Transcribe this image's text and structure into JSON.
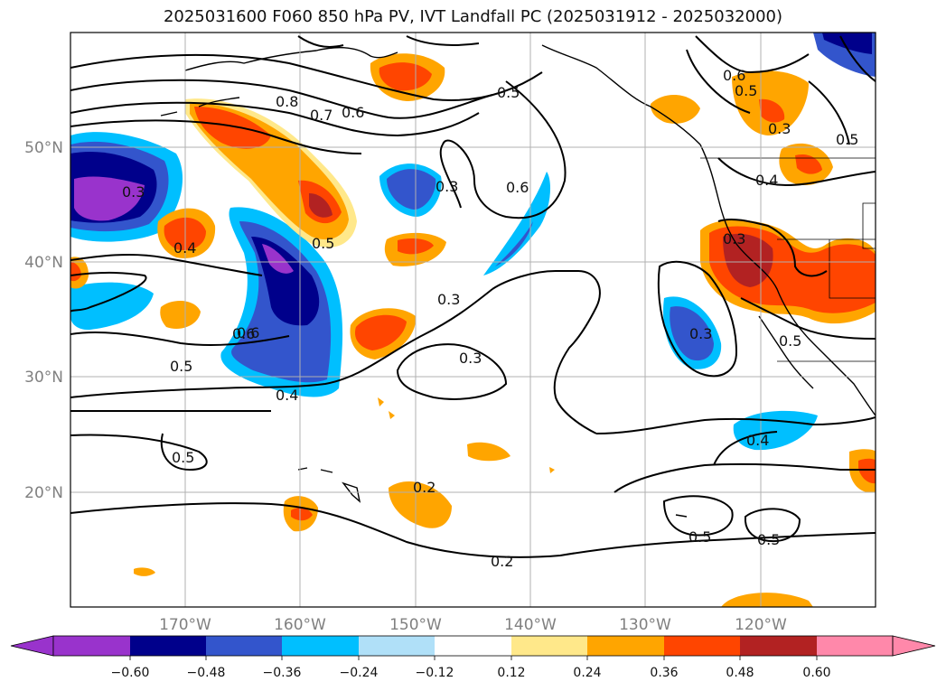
{
  "title": "2025031600 F060 850 hPa PV, IVT Landfall PC (2025031912 - 2025032000)",
  "map": {
    "lon_range": [
      -180,
      -110
    ],
    "lat_range": [
      10,
      60
    ],
    "lon_ticks": [
      "170°W",
      "160°W",
      "150°W",
      "140°W",
      "130°W",
      "120°W"
    ],
    "lat_ticks": [
      "50°N",
      "40°N",
      "30°N",
      "20°N"
    ],
    "grid": true
  },
  "colorbar": {
    "ticks": [
      "−0.60",
      "−0.48",
      "−0.36",
      "−0.24",
      "−0.12",
      "0.12",
      "0.24",
      "0.36",
      "0.48",
      "0.60"
    ],
    "colors": [
      "#9933cc",
      "#00008b",
      "#3355cc",
      "#00bfff",
      "#b0e0f8",
      "#ffffff",
      "#ffe88a",
      "#ffa500",
      "#ff4500",
      "#b22222",
      "#ff88aa"
    ],
    "extend": "both"
  },
  "contour_labels": [
    "0.8",
    "0.7",
    "0.6",
    "0.5",
    "0.6",
    "0.5",
    "0.3",
    "0.6",
    "0.4",
    "0.3",
    "0.3",
    "0.6",
    "0.5",
    "0.4",
    "0.3",
    "0.3",
    "0.5",
    "0.2",
    "0.2",
    "0.4",
    "0.5",
    "0.5",
    "0.6",
    "0.5",
    "0.3",
    "0.5",
    "0.4",
    "0.3",
    "0.5"
  ]
}
